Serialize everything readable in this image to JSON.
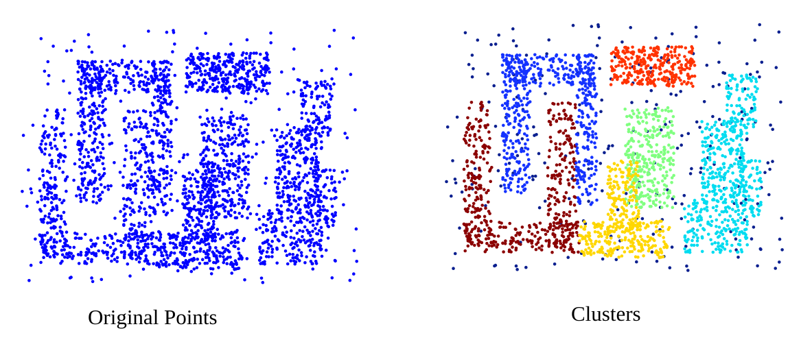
{
  "captions": {
    "left": "Original Points",
    "right": "Clusters"
  },
  "chart_data": [
    {
      "type": "scatter",
      "title": "Original Points",
      "xlabel": "",
      "ylabel": "",
      "xlim": [
        0,
        100
      ],
      "ylim": [
        0,
        100
      ],
      "axes_visible": false,
      "grid": false,
      "note_values": "synthetic 2D point cloud; all points one color",
      "series": [
        {
          "color": "#0000ff",
          "point_count": 3000,
          "regions": "all"
        }
      ]
    },
    {
      "type": "scatter",
      "title": "Clusters",
      "xlabel": "",
      "ylabel": "",
      "xlim": [
        0,
        100
      ],
      "ylim": [
        0,
        100
      ],
      "axes_visible": false,
      "grid": false,
      "series": [
        {
          "color": "#0a1f8f",
          "region": "noise"
        },
        {
          "color": "#1432ff",
          "region": "top-left-arch"
        },
        {
          "color": "#8b0000",
          "region": "left-u-shape"
        },
        {
          "color": "#ff3300",
          "region": "top-center-bar"
        },
        {
          "color": "#80ff80",
          "region": "center-vertical-block"
        },
        {
          "color": "#ffd700",
          "region": "bottom-center-t"
        },
        {
          "color": "#00dcf0",
          "region": "right-s-shape"
        }
      ]
    }
  ],
  "colors": {
    "original": "#0000ff",
    "noise": "#0a1f8f",
    "blue": "#1432ff",
    "darkred": "#8b0000",
    "red": "#ff3300",
    "green": "#80ff80",
    "yellow": "#ffd700",
    "cyan": "#00dcf0"
  }
}
